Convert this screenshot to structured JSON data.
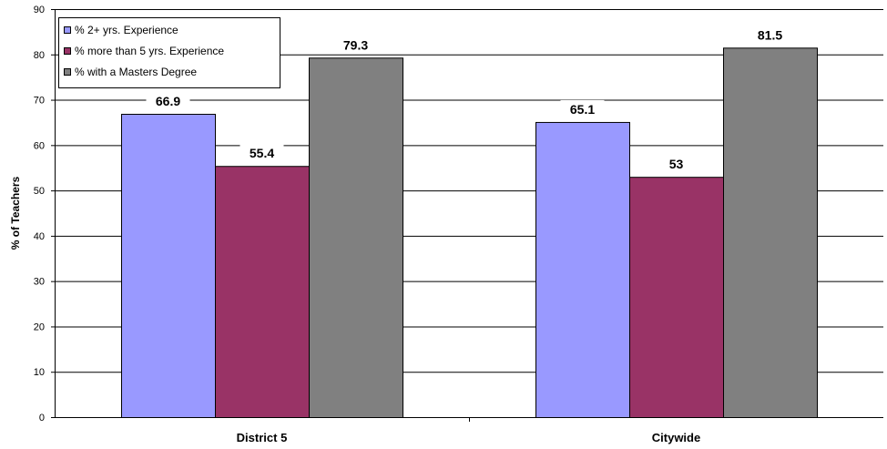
{
  "chart_data": {
    "type": "bar",
    "title": "",
    "xlabel": "",
    "ylabel": "% of Teachers",
    "ylim": [
      0,
      90
    ],
    "yticks": [
      0,
      10,
      20,
      30,
      40,
      50,
      60,
      70,
      80,
      90
    ],
    "categories": [
      "District 5",
      "Citywide"
    ],
    "series": [
      {
        "name": "% 2+ yrs. Experience",
        "color": "#9999FF",
        "values": [
          66.9,
          65.1
        ],
        "labels": [
          "66.9",
          "65.1"
        ]
      },
      {
        "name": "% more than 5 yrs. Experience",
        "color": "#993366",
        "values": [
          55.4,
          53
        ],
        "labels": [
          "55.4",
          "53"
        ]
      },
      {
        "name": "% with a Masters Degree",
        "color": "#808080",
        "values": [
          79.3,
          81.5
        ],
        "labels": [
          "79.3",
          "81.5"
        ]
      }
    ],
    "grid": true,
    "legend": "top-left"
  }
}
